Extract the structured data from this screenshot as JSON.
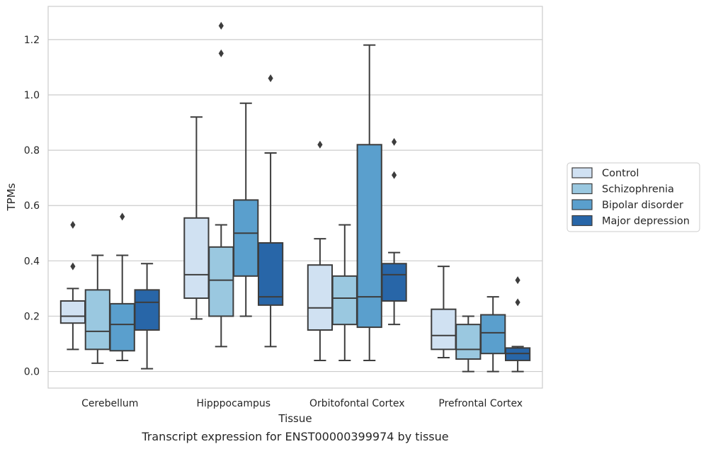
{
  "chart_data": {
    "type": "boxplot",
    "title": "",
    "caption": "Transcript expression for ENST00000399974 by tissue",
    "xlabel": "Tissue",
    "ylabel": "TPMs",
    "ylim": [
      -0.06,
      1.32
    ],
    "yticks": [
      0.0,
      0.2,
      0.4,
      0.6,
      0.8,
      1.0,
      1.2
    ],
    "ytick_labels": [
      "0.0",
      "0.2",
      "0.4",
      "0.6",
      "0.8",
      "1.0",
      "1.2"
    ],
    "grid": "horizontal",
    "legend_position": "right",
    "categories": [
      "Cerebellum",
      "Hipppocampus",
      "Orbitofontal Cortex",
      "Prefrontal Cortex"
    ],
    "series": [
      {
        "name": "Control",
        "color": "#d0e1f2",
        "boxes": [
          {
            "whisker_low": 0.08,
            "q1": 0.175,
            "median": 0.2,
            "q3": 0.255,
            "whisker_high": 0.3,
            "outliers": [
              0.38,
              0.53
            ]
          },
          {
            "whisker_low": 0.19,
            "q1": 0.265,
            "median": 0.35,
            "q3": 0.555,
            "whisker_high": 0.92,
            "outliers": []
          },
          {
            "whisker_low": 0.04,
            "q1": 0.15,
            "median": 0.23,
            "q3": 0.385,
            "whisker_high": 0.48,
            "outliers": [
              0.82
            ]
          },
          {
            "whisker_low": 0.05,
            "q1": 0.08,
            "median": 0.13,
            "q3": 0.225,
            "whisker_high": 0.38,
            "outliers": []
          }
        ]
      },
      {
        "name": "Schizophrenia",
        "color": "#9ac8e0",
        "boxes": [
          {
            "whisker_low": 0.03,
            "q1": 0.08,
            "median": 0.145,
            "q3": 0.295,
            "whisker_high": 0.42,
            "outliers": []
          },
          {
            "whisker_low": 0.09,
            "q1": 0.2,
            "median": 0.33,
            "q3": 0.45,
            "whisker_high": 0.53,
            "outliers": [
              1.15,
              1.25
            ]
          },
          {
            "whisker_low": 0.04,
            "q1": 0.17,
            "median": 0.265,
            "q3": 0.345,
            "whisker_high": 0.53,
            "outliers": []
          },
          {
            "whisker_low": 0.0,
            "q1": 0.045,
            "median": 0.08,
            "q3": 0.17,
            "whisker_high": 0.2,
            "outliers": []
          }
        ]
      },
      {
        "name": "Bipolar disorder",
        "color": "#5a9fcd",
        "boxes": [
          {
            "whisker_low": 0.04,
            "q1": 0.075,
            "median": 0.17,
            "q3": 0.245,
            "whisker_high": 0.42,
            "outliers": [
              0.56
            ]
          },
          {
            "whisker_low": 0.2,
            "q1": 0.345,
            "median": 0.5,
            "q3": 0.62,
            "whisker_high": 0.97,
            "outliers": []
          },
          {
            "whisker_low": 0.04,
            "q1": 0.16,
            "median": 0.27,
            "q3": 0.82,
            "whisker_high": 1.18,
            "outliers": []
          },
          {
            "whisker_low": 0.0,
            "q1": 0.065,
            "median": 0.14,
            "q3": 0.205,
            "whisker_high": 0.27,
            "outliers": []
          }
        ]
      },
      {
        "name": "Major depression",
        "color": "#2866a8",
        "boxes": [
          {
            "whisker_low": 0.01,
            "q1": 0.15,
            "median": 0.25,
            "q3": 0.295,
            "whisker_high": 0.39,
            "outliers": []
          },
          {
            "whisker_low": 0.09,
            "q1": 0.24,
            "median": 0.27,
            "q3": 0.465,
            "whisker_high": 0.79,
            "outliers": [
              1.06
            ]
          },
          {
            "whisker_low": 0.17,
            "q1": 0.255,
            "median": 0.35,
            "q3": 0.39,
            "whisker_high": 0.43,
            "outliers": [
              0.71,
              0.83
            ]
          },
          {
            "whisker_low": 0.0,
            "q1": 0.04,
            "median": 0.065,
            "q3": 0.085,
            "whisker_high": 0.09,
            "outliers": [
              0.25,
              0.33
            ]
          }
        ]
      }
    ]
  }
}
